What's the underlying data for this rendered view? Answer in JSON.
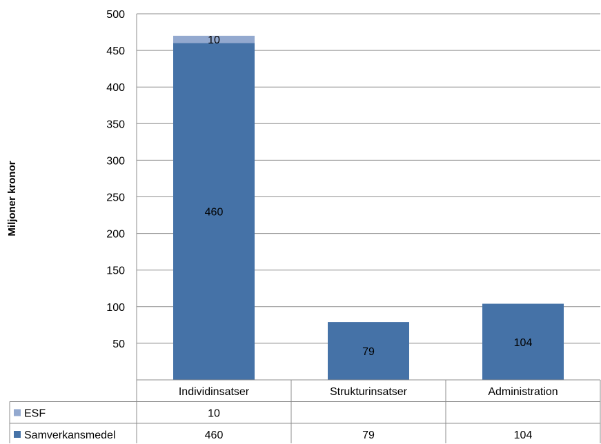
{
  "chart_data": {
    "type": "bar",
    "stacked": true,
    "ylabel": "Miljoner kronor",
    "ylim": [
      0,
      500
    ],
    "yticks": [
      50,
      100,
      150,
      200,
      250,
      300,
      350,
      400,
      450,
      500
    ],
    "grid": true,
    "legend": "data-table-left",
    "categories": [
      "Individinsatser",
      "Strukturinsatser",
      "Administration"
    ],
    "series": [
      {
        "name": "Samverkansmedel",
        "color": "#4572a7",
        "values": [
          460,
          79,
          104
        ],
        "labels": [
          "460",
          "79",
          "104"
        ]
      },
      {
        "name": "ESF",
        "color": "#93a9cf",
        "values": [
          10,
          0,
          0
        ],
        "labels": [
          "10",
          "",
          ""
        ]
      }
    ]
  }
}
